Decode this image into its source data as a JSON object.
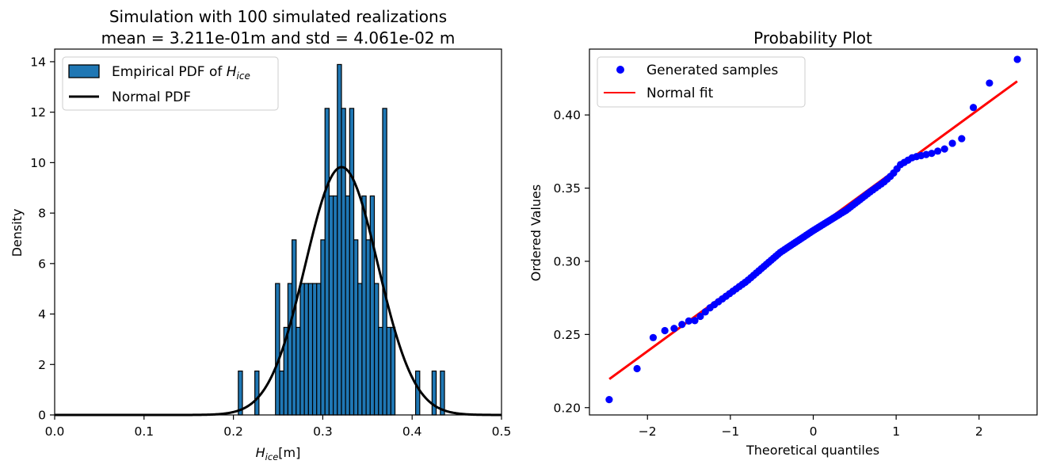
{
  "chart_data": [
    {
      "type": "bar",
      "title_lines": [
        "Simulation with 100 simulated realizations",
        "mean = 3.211e-01m and std = 4.061e-02 m"
      ],
      "xlabel": {
        "base": "H",
        "sub": "ice",
        "unit": "[m]"
      },
      "ylabel": "Density",
      "xlim": [
        0.0,
        0.5
      ],
      "ylim": [
        0,
        14.5
      ],
      "xticks": [
        0.0,
        0.1,
        0.2,
        0.3,
        0.4,
        0.5
      ],
      "xtick_labels": [
        "0.0",
        "0.1",
        "0.2",
        "0.3",
        "0.4",
        "0.5"
      ],
      "yticks": [
        0,
        2,
        4,
        6,
        8,
        10,
        12,
        14
      ],
      "ytick_labels": [
        "0",
        "2",
        "4",
        "6",
        "8",
        "10",
        "12",
        "14"
      ],
      "bin_width": 0.00461,
      "bins": [
        {
          "left": 0.2055,
          "density": 1.74
        },
        {
          "left": 0.224,
          "density": 1.74
        },
        {
          "left": 0.2471,
          "density": 5.21
        },
        {
          "left": 0.2518,
          "density": 1.74
        },
        {
          "left": 0.2564,
          "density": 3.47
        },
        {
          "left": 0.261,
          "density": 5.21
        },
        {
          "left": 0.2656,
          "density": 6.94
        },
        {
          "left": 0.2702,
          "density": 3.47
        },
        {
          "left": 0.2748,
          "density": 5.21
        },
        {
          "left": 0.2794,
          "density": 5.21
        },
        {
          "left": 0.284,
          "density": 5.21
        },
        {
          "left": 0.2886,
          "density": 5.21
        },
        {
          "left": 0.2932,
          "density": 5.21
        },
        {
          "left": 0.2978,
          "density": 6.94
        },
        {
          "left": 0.3025,
          "density": 12.15
        },
        {
          "left": 0.3071,
          "density": 8.68
        },
        {
          "left": 0.3117,
          "density": 8.68
        },
        {
          "left": 0.3163,
          "density": 13.89
        },
        {
          "left": 0.3209,
          "density": 12.15
        },
        {
          "left": 0.3255,
          "density": 8.68
        },
        {
          "left": 0.3301,
          "density": 12.15
        },
        {
          "left": 0.3347,
          "density": 6.94
        },
        {
          "left": 0.3393,
          "density": 5.21
        },
        {
          "left": 0.3439,
          "density": 8.68
        },
        {
          "left": 0.3485,
          "density": 6.94
        },
        {
          "left": 0.3531,
          "density": 8.68
        },
        {
          "left": 0.3578,
          "density": 5.21
        },
        {
          "left": 0.3624,
          "density": 3.47
        },
        {
          "left": 0.367,
          "density": 12.15
        },
        {
          "left": 0.3716,
          "density": 3.47
        },
        {
          "left": 0.3762,
          "density": 3.47
        },
        {
          "left": 0.4039,
          "density": 1.74
        },
        {
          "left": 0.4223,
          "density": 1.74
        },
        {
          "left": 0.4316,
          "density": 1.74
        }
      ],
      "normal_pdf": {
        "mean": 0.3211,
        "std": 0.04061
      },
      "series": [
        {
          "name": "Empirical PDF of ",
          "name_math": {
            "base": "H",
            "sub": "ice"
          },
          "style": "bar",
          "color": "#1f77b4",
          "edge": "#000000"
        },
        {
          "name": "Normal PDF",
          "style": "line",
          "color": "#000000"
        }
      ],
      "legend": "top-left"
    },
    {
      "type": "scatter",
      "title": "Probability Plot",
      "xlabel": "Theoretical quantiles",
      "ylabel": "Ordered Values",
      "xlim": [
        -2.7,
        2.7
      ],
      "ylim": [
        0.195,
        0.445
      ],
      "xticks": [
        -2,
        -1,
        0,
        1,
        2
      ],
      "xtick_labels": [
        "−2",
        "−1",
        "0",
        "1",
        "2"
      ],
      "yticks": [
        0.2,
        0.25,
        0.3,
        0.35,
        0.4
      ],
      "ytick_labels": [
        "0.20",
        "0.25",
        "0.30",
        "0.35",
        "0.40"
      ],
      "sample_mean": 0.3211,
      "sample_std": 0.04061,
      "key_points": [
        [
          -2.46,
          0.2055
        ],
        [
          -2.12,
          0.227
        ],
        [
          -1.93,
          0.248
        ],
        [
          -1.8,
          0.2525
        ],
        [
          -1.7,
          0.254
        ],
        [
          -1.62,
          0.2545
        ],
        [
          -1.55,
          0.259
        ],
        [
          -1.42,
          0.2595
        ],
        [
          -1.25,
          0.268
        ],
        [
          -0.8,
          0.2865
        ],
        [
          -0.4,
          0.306
        ],
        [
          0.0,
          0.321
        ],
        [
          0.4,
          0.335
        ],
        [
          0.7,
          0.348
        ],
        [
          0.85,
          0.354
        ],
        [
          0.95,
          0.359
        ],
        [
          1.05,
          0.366
        ],
        [
          1.2,
          0.371
        ],
        [
          1.45,
          0.374
        ],
        [
          1.55,
          0.3765
        ],
        [
          1.62,
          0.377
        ],
        [
          1.7,
          0.382
        ],
        [
          1.8,
          0.384
        ],
        [
          1.93,
          0.405
        ],
        [
          2.12,
          0.4215
        ],
        [
          2.46,
          0.438
        ]
      ],
      "fit_line": {
        "x": [
          -2.46,
          2.46
        ],
        "y": [
          0.2195,
          0.423
        ]
      },
      "series": [
        {
          "name": "Generated samples",
          "style": "marker",
          "color": "#0000ff"
        },
        {
          "name": "Normal fit",
          "style": "line",
          "color": "#ff0000"
        }
      ],
      "legend": "top-left"
    }
  ]
}
